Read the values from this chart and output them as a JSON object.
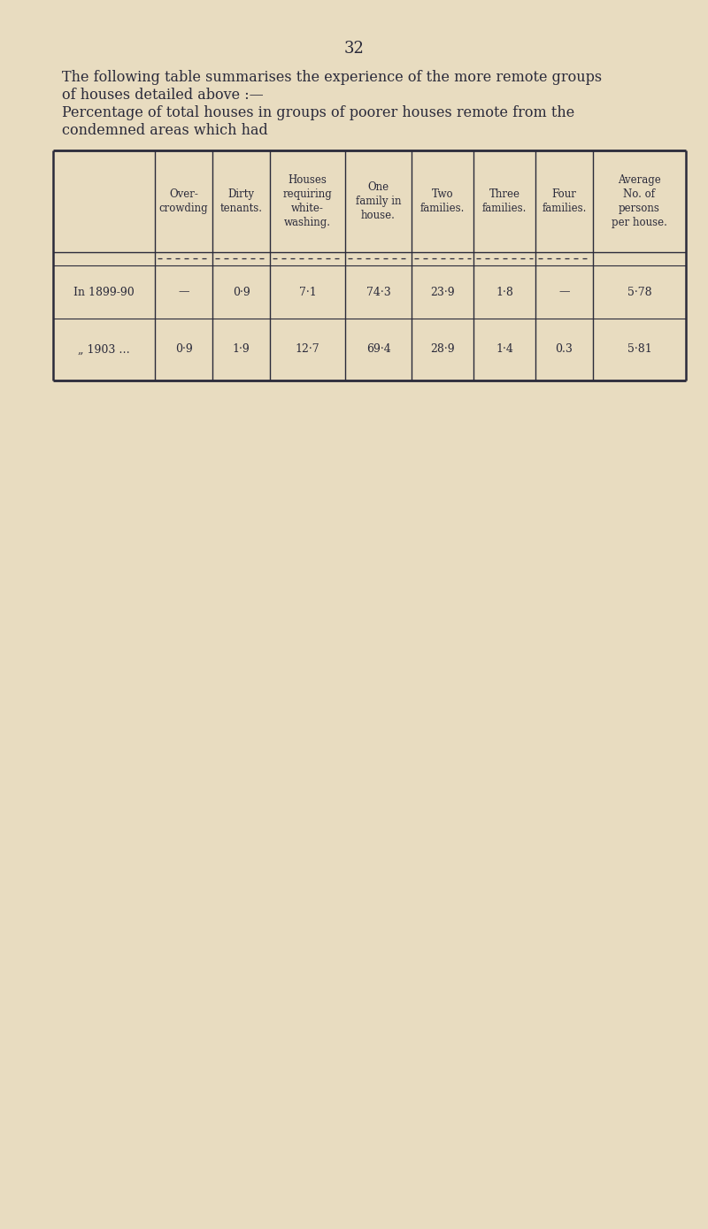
{
  "page_number": "32",
  "para1_line1": "The following table summarises the experience of the more remote groups",
  "para1_line2": "of houses detailed above :—",
  "para2_line1": "Percentage of total houses in groups of poorer houses remote from the",
  "para2_line2": "condemned areas which had",
  "bg_color": "#e8dcc0",
  "text_color": "#2a2a3a",
  "col_headers": [
    "Over-\ncrowding",
    "Dirty\ntenants.",
    "Houses\nrequiring\nwhite-\nwashing.",
    "One\nfamily in\nhouse.",
    "Two\nfamilies.",
    "Three\nfamilies.",
    "Four\nfamilies.",
    "Average\nNo. of\npersons\nper house."
  ],
  "rows": [
    {
      "label": "In 1899-90",
      "values": [
        "—",
        "0·9",
        "7·1",
        "74·3",
        "23·9",
        "1·8",
        "—",
        "5·78"
      ]
    },
    {
      "label": "„ 1903 …",
      "values": [
        "0·9",
        "1·9",
        "12·7",
        "69·4",
        "28·9",
        "1·4",
        "0.3",
        "5·81"
      ]
    }
  ]
}
